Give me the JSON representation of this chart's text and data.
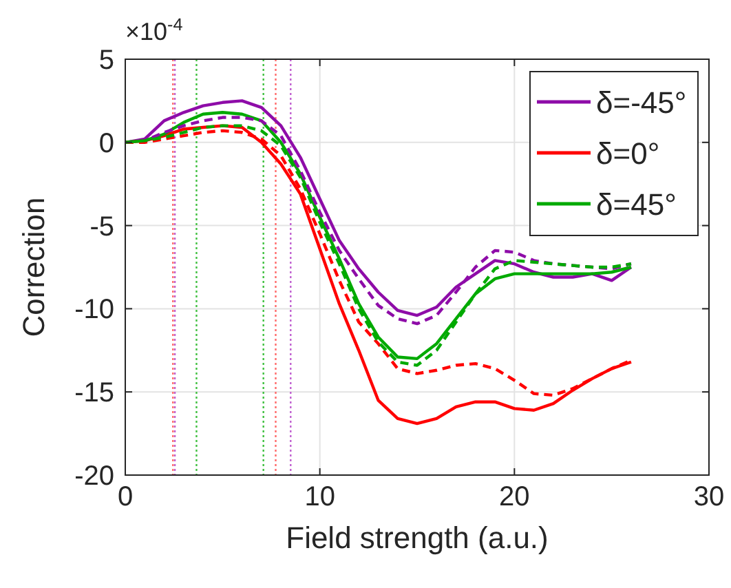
{
  "chart_data": {
    "type": "line",
    "xlabel": "Field strength (a.u.)",
    "ylabel": "Correction",
    "annotations": [
      "×10$^{-4}$"
    ],
    "x": [
      0,
      1,
      2,
      3,
      4,
      5,
      6,
      7,
      8,
      9,
      10,
      11,
      12,
      13,
      14,
      15,
      16,
      17,
      18,
      19,
      20,
      21,
      22,
      23,
      24,
      25,
      26
    ],
    "series": [
      {
        "name": "δ=-45°",
        "color": "#8e0ca8",
        "line_style": "solid",
        "values": [
          0,
          0.2,
          1.3,
          1.8,
          2.2,
          2.4,
          2.5,
          2.1,
          1.0,
          -0.9,
          -3.4,
          -5.9,
          -7.6,
          -9.0,
          -10.1,
          -10.4,
          -9.9,
          -8.7,
          -7.9,
          -7.1,
          -7.3,
          -7.8,
          -8.1,
          -8.1,
          -7.9,
          -8.3,
          -7.5
        ]
      },
      {
        "name": "δ=0°",
        "color": "#ff0000",
        "line_style": "solid",
        "values": [
          0,
          0.1,
          0.4,
          0.8,
          0.9,
          1.0,
          0.9,
          0,
          -1.3,
          -3.1,
          -6.4,
          -9.7,
          -12.5,
          -15.5,
          -16.6,
          -16.9,
          -16.6,
          -15.9,
          -15.6,
          -15.6,
          -16.0,
          -16.1,
          -15.7,
          -14.9,
          -14.2,
          -13.6,
          -13.2
        ]
      },
      {
        "name": "δ=45°",
        "color": "#00aa00",
        "line_style": "solid",
        "values": [
          0,
          0.1,
          0.5,
          1.2,
          1.7,
          1.8,
          1.7,
          1.3,
          0,
          -1.9,
          -4.5,
          -7.0,
          -9.7,
          -11.7,
          -12.9,
          -13.0,
          -12.1,
          -10.6,
          -9.1,
          -8.2,
          -7.9,
          -7.9,
          -7.9,
          -7.9,
          -7.9,
          -7.8,
          -7.5
        ]
      },
      {
        "color": "#8e0ca8",
        "line_style": "dashed",
        "values": [
          0,
          0.1,
          0.6,
          1.0,
          1.3,
          1.5,
          1.5,
          1.3,
          0.4,
          -1.7,
          -4.2,
          -6.5,
          -8.2,
          -9.8,
          -10.6,
          -10.9,
          -10.4,
          -9.0,
          -7.5,
          -6.5,
          -6.6,
          -7.1,
          -7.3,
          -7.4,
          -7.5,
          -7.6,
          -7.3
        ]
      },
      {
        "color": "#ff0000",
        "line_style": "dashed",
        "values": [
          0,
          0,
          0.2,
          0.4,
          0.6,
          0.7,
          0.6,
          0.2,
          -0.8,
          -2.8,
          -5.5,
          -8.3,
          -10.8,
          -12.1,
          -13.6,
          -13.9,
          -13.7,
          -13.4,
          -13.3,
          -13.6,
          -14.3,
          -15.1,
          -15.2,
          -14.8,
          -14.2,
          -13.6,
          -13.1
        ]
      },
      {
        "color": "#00aa00",
        "line_style": "dashed",
        "values": [
          0,
          0.1,
          0.3,
          0.6,
          0.9,
          1.0,
          1.0,
          0.7,
          -0.2,
          -2.1,
          -4.8,
          -7.3,
          -10.0,
          -12.0,
          -13.2,
          -13.4,
          -12.5,
          -10.8,
          -9.1,
          -7.6,
          -7.1,
          -7.2,
          -7.3,
          -7.4,
          -7.5,
          -7.5,
          -7.3
        ]
      }
    ],
    "xlim": [
      0,
      30
    ],
    "xticks": [
      0,
      10,
      20,
      30
    ],
    "ylim": [
      -20,
      5
    ],
    "yticks": [
      -20,
      -15,
      -10,
      -5,
      0,
      5
    ],
    "ref_lines": [
      {
        "axis": "x",
        "value": 2.45,
        "color": "#ff6b6b",
        "line_style": "dotted"
      },
      {
        "axis": "x",
        "value": 2.55,
        "color": "#c060d0",
        "line_style": "dotted"
      },
      {
        "axis": "x",
        "value": 3.66,
        "color": "#40c040",
        "line_style": "dotted"
      },
      {
        "axis": "x",
        "value": 7.1,
        "color": "#40c040",
        "line_style": "dotted"
      },
      {
        "axis": "x",
        "value": 7.73,
        "color": "#ff6b6b",
        "line_style": "dotted"
      },
      {
        "axis": "x",
        "value": 8.5,
        "color": "#c060d0",
        "line_style": "dotted"
      }
    ],
    "grid": true,
    "legend": "top right"
  }
}
